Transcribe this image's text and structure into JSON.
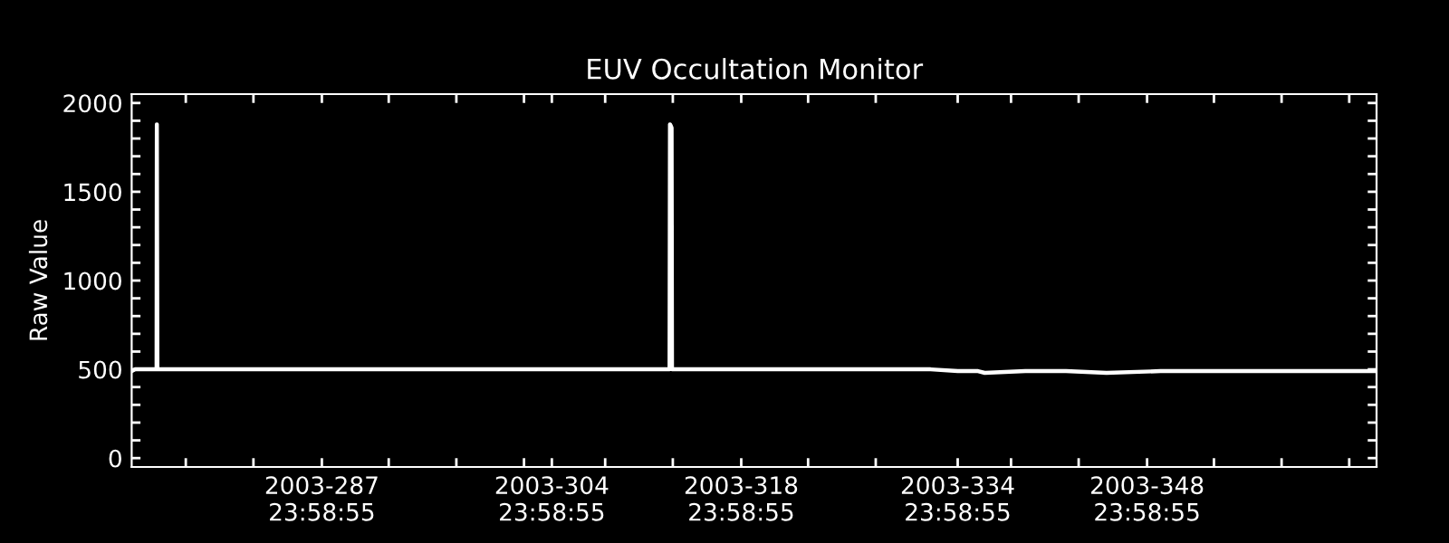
{
  "chart_data": {
    "type": "line",
    "title": "EUV Occultation Monitor",
    "ylabel": "Raw Value",
    "series": [
      {
        "color": "#ffffff",
        "x": [
          "2003-09-30T22:34",
          "2003-10-01T04:48",
          "2003-10-02T18:43",
          "2003-10-02T19:12",
          "2003-10-02T20:10",
          "2003-11-09T16:48",
          "2003-11-09T17:31",
          "2003-11-09T19:12",
          "2003-11-09T20:24",
          "2003-11-09T21:07",
          "2003-11-16T00:00",
          "2003-11-23T00:00",
          "2003-11-26T00:00",
          "2003-11-29T00:00",
          "2003-12-01T00:00",
          "2003-12-02T12:00",
          "2003-12-03T00:00",
          "2003-12-06T00:00",
          "2003-12-09T00:00",
          "2003-12-12T00:00",
          "2003-12-16T00:00",
          "2003-12-22T00:00",
          "2003-12-28T00:00",
          "2003-12-31T00:00",
          "2003-12-31T23:02"
        ],
        "values": [
          490,
          500,
          500,
          1880,
          500,
          500,
          1880,
          1870,
          1860,
          500,
          500,
          500,
          500,
          500,
          490,
          490,
          480,
          490,
          490,
          480,
          490,
          490,
          490,
          490,
          490
        ]
      }
    ],
    "xlim": [
      "2003-09-30T22:34",
      "2003-12-31T23:02"
    ],
    "xticks": [
      {
        "value": "2003-10-04T22:34",
        "label": null
      },
      {
        "value": "2003-10-09T22:34",
        "label": null
      },
      {
        "value": "2003-10-14T23:58",
        "label": "2003-287\n23:58:55"
      },
      {
        "value": "2003-10-19T22:34",
        "label": null
      },
      {
        "value": "2003-10-24T22:34",
        "label": null
      },
      {
        "value": "2003-10-29T22:34",
        "label": null
      },
      {
        "value": "2003-10-31T23:58",
        "label": "2003-304\n23:58:55"
      },
      {
        "value": "2003-11-04T22:34",
        "label": null
      },
      {
        "value": "2003-11-09T22:34",
        "label": null
      },
      {
        "value": "2003-11-14T23:58",
        "label": "2003-318\n23:58:55"
      },
      {
        "value": "2003-11-19T22:34",
        "label": null
      },
      {
        "value": "2003-11-24T22:34",
        "label": null
      },
      {
        "value": "2003-11-30T23:58",
        "label": "2003-334\n23:58:55"
      },
      {
        "value": "2003-12-04T22:34",
        "label": null
      },
      {
        "value": "2003-12-09T22:34",
        "label": null
      },
      {
        "value": "2003-12-14T23:58",
        "label": "2003-348\n23:58:55"
      },
      {
        "value": "2003-12-19T22:34",
        "label": null
      },
      {
        "value": "2003-12-24T22:34",
        "label": null
      },
      {
        "value": "2003-12-29T22:34",
        "label": null
      }
    ],
    "ylim": [
      -50,
      2050
    ],
    "yticks": [
      0,
      {
        "value": 100,
        "label": null
      },
      {
        "value": 200,
        "label": null
      },
      {
        "value": 300,
        "label": null
      },
      {
        "value": 400,
        "label": null
      },
      500,
      {
        "value": 600,
        "label": null
      },
      {
        "value": 700,
        "label": null
      },
      {
        "value": 800,
        "label": null
      },
      {
        "value": 900,
        "label": null
      },
      1000,
      {
        "value": 1100,
        "label": null
      },
      {
        "value": 1200,
        "label": null
      },
      {
        "value": 1300,
        "label": null
      },
      {
        "value": 1400,
        "label": null
      },
      1500,
      {
        "value": 1600,
        "label": null
      },
      {
        "value": 1700,
        "label": null
      },
      {
        "value": 1800,
        "label": null
      },
      {
        "value": 1900,
        "label": null
      },
      2000
    ],
    "marker": "none",
    "line_style": "solid",
    "grid": false,
    "legend": false
  }
}
